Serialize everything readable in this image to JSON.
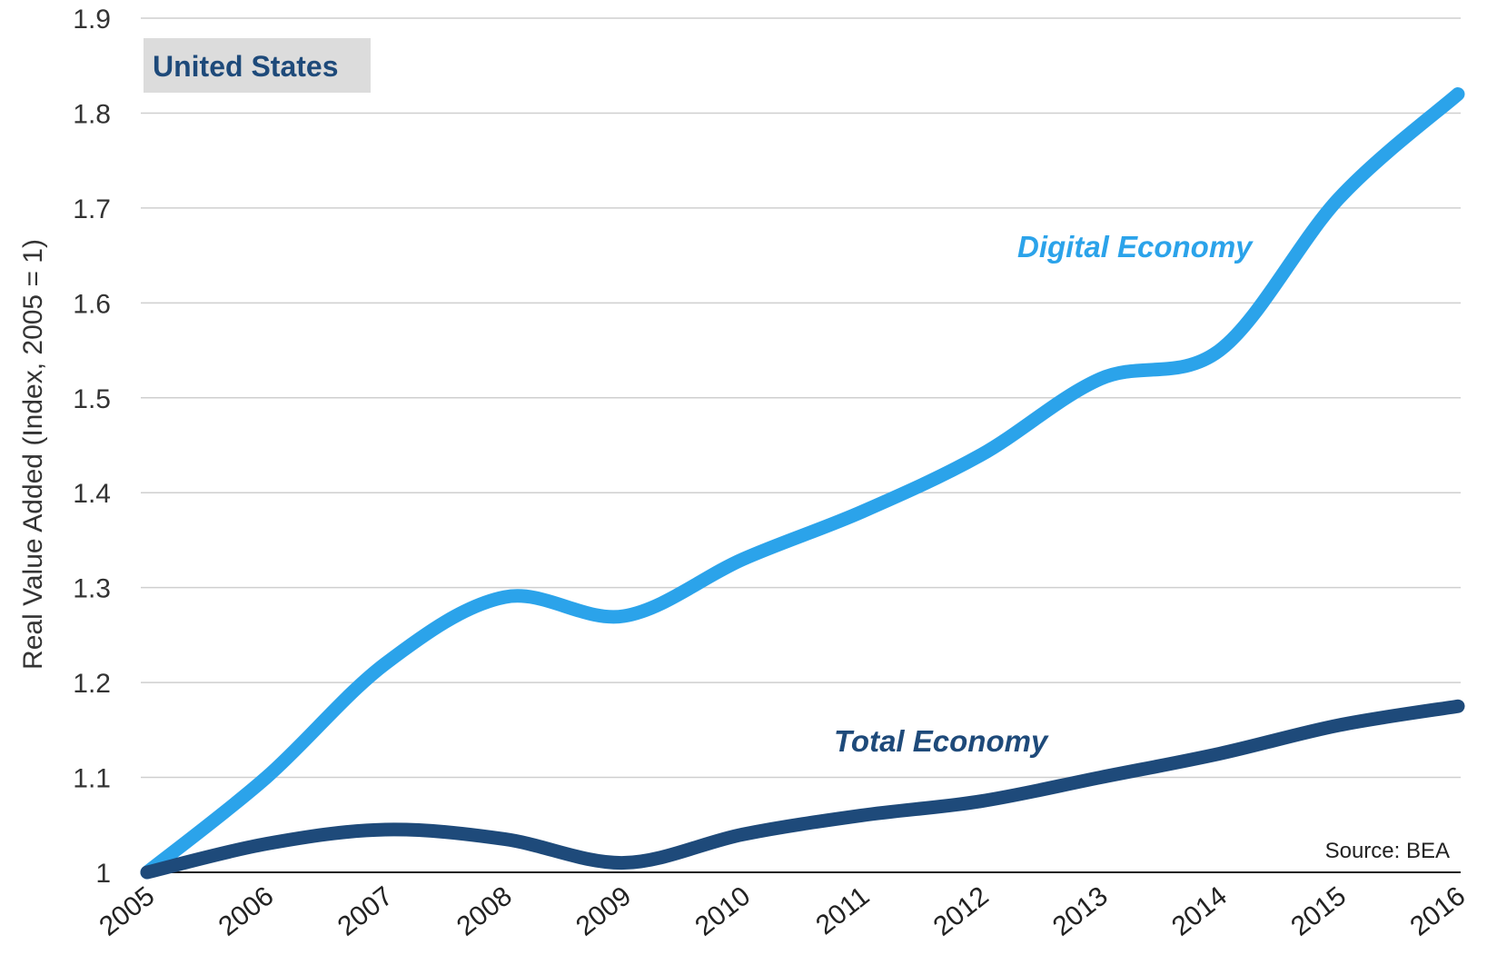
{
  "chart_data": {
    "type": "line",
    "title": "United States",
    "ylabel": "Real Value Added (Index, 2005 = 1)",
    "xlabel": "",
    "source": "Source: BEA",
    "ylim": [
      1,
      1.9
    ],
    "yticks": [
      1,
      1.1,
      1.2,
      1.3,
      1.4,
      1.5,
      1.6,
      1.7,
      1.8,
      1.9
    ],
    "ytick_labels": [
      "1",
      "1.1",
      "1.2",
      "1.3",
      "1.4",
      "1.5",
      "1.6",
      "1.7",
      "1.8",
      "1.9"
    ],
    "categories": [
      "2005",
      "2006",
      "2007",
      "2008",
      "2009",
      "2010",
      "2011",
      "2012",
      "2013",
      "2014",
      "2015",
      "2016"
    ],
    "grid": true,
    "series": [
      {
        "name": "Digital Economy",
        "color": "#2ba3ea",
        "values": [
          1.0,
          1.1,
          1.22,
          1.29,
          1.27,
          1.33,
          1.38,
          1.44,
          1.52,
          1.55,
          1.71,
          1.82
        ]
      },
      {
        "name": "Total Economy",
        "color": "#1e4a7a",
        "values": [
          1.0,
          1.03,
          1.045,
          1.035,
          1.01,
          1.04,
          1.06,
          1.075,
          1.1,
          1.125,
          1.155,
          1.175
        ]
      }
    ],
    "colors": {
      "title_text": "#1e4a7a",
      "title_box": "#dcdcdc",
      "grid": "#cfcfcf"
    }
  }
}
